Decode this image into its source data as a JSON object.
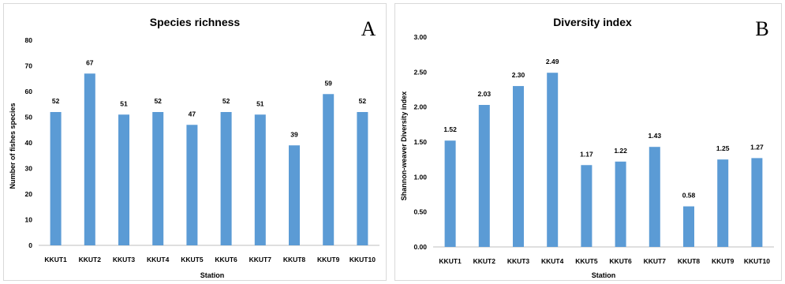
{
  "colors": {
    "bar": "#5b9bd5",
    "axis": "#bfbfbf"
  },
  "chart_data": [
    {
      "type": "bar",
      "panel_letter": "A",
      "title": "Species richness",
      "xlabel": "Station",
      "ylabel": "Number of fishes species",
      "categories": [
        "KKUT1",
        "KKUT2",
        "KKUT3",
        "KKUT4",
        "KKUT5",
        "KKUT6",
        "KKUT7",
        "KKUT8",
        "KKUT9",
        "KKUT10"
      ],
      "values": [
        52,
        67,
        51,
        52,
        47,
        52,
        51,
        39,
        59,
        52
      ],
      "data_labels": [
        "52",
        "67",
        "51",
        "52",
        "47",
        "52",
        "51",
        "39",
        "59",
        "52"
      ],
      "ylim": [
        0,
        80
      ],
      "yticks": [
        "0",
        "10",
        "20",
        "30",
        "40",
        "50",
        "60",
        "70",
        "80"
      ],
      "grid": false,
      "legend": "none"
    },
    {
      "type": "bar",
      "panel_letter": "B",
      "title": "Diversity index",
      "xlabel": "Station",
      "ylabel": "Shannon-weaver Diversity index",
      "categories": [
        "KKUT1",
        "KKUT2",
        "KKUT3",
        "KKUT4",
        "KKUT5",
        "KKUT6",
        "KKUT7",
        "KKUT8",
        "KKUT9",
        "KKUT10"
      ],
      "values": [
        1.52,
        2.03,
        2.3,
        2.49,
        1.17,
        1.22,
        1.43,
        0.58,
        1.25,
        1.27
      ],
      "data_labels": [
        "1.52",
        "2.03",
        "2.30",
        "2.49",
        "1.17",
        "1.22",
        "1.43",
        "0.58",
        "1.25",
        "1.27"
      ],
      "ylim": [
        0,
        3
      ],
      "yticks": [
        "0.00",
        "0.50",
        "1.00",
        "1.50",
        "2.00",
        "2.50",
        "3.00"
      ],
      "grid": false,
      "legend": "none"
    }
  ]
}
